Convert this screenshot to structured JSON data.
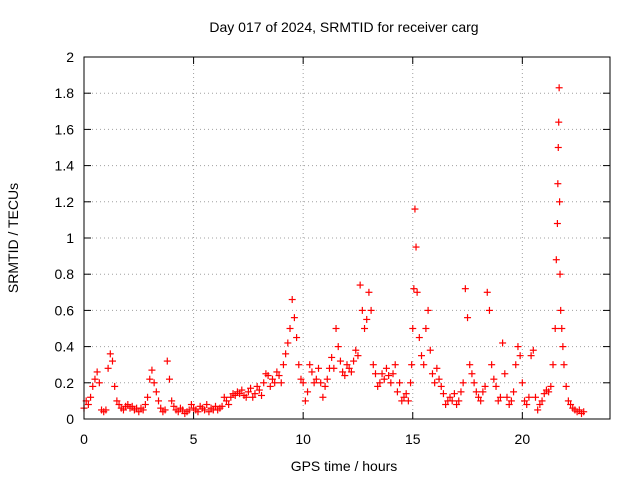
{
  "chart_data": {
    "type": "scatter",
    "title": "Day 017 of 2024, SRMTID for receiver carg",
    "xlabel": "GPS time / hours",
    "ylabel": "SRMTID / TECUs",
    "xlim": [
      0,
      24
    ],
    "ylim": [
      0,
      2
    ],
    "xticks": [
      0,
      5,
      10,
      15,
      20
    ],
    "yticks": [
      0,
      0.2,
      0.4,
      0.6,
      0.8,
      1,
      1.2,
      1.4,
      1.6,
      1.8,
      2
    ],
    "xtick_labels": [
      "0",
      "5",
      "10",
      "15",
      "20"
    ],
    "ytick_labels": [
      "0",
      "0.2",
      "0.4",
      "0.6",
      "0.8",
      "1",
      "1.2",
      "1.4",
      "1.6",
      "1.8",
      "2"
    ],
    "grid": true,
    "marker": "+",
    "color": "#ff0000",
    "series": [
      {
        "name": "SRMTID",
        "x": [
          0.0,
          0.1,
          0.2,
          0.3,
          0.4,
          0.5,
          0.6,
          0.7,
          0.8,
          0.9,
          1.0,
          1.1,
          1.2,
          1.3,
          1.4,
          1.5,
          1.6,
          1.7,
          1.8,
          1.9,
          2.0,
          2.1,
          2.2,
          2.3,
          2.4,
          2.5,
          2.6,
          2.7,
          2.8,
          2.9,
          3.0,
          3.1,
          3.2,
          3.3,
          3.4,
          3.5,
          3.6,
          3.7,
          3.8,
          3.9,
          4.0,
          4.1,
          4.2,
          4.3,
          4.4,
          4.5,
          4.6,
          4.7,
          4.8,
          4.9,
          5.0,
          5.1,
          5.2,
          5.3,
          5.4,
          5.5,
          5.6,
          5.7,
          5.8,
          5.9,
          6.0,
          6.1,
          6.2,
          6.3,
          6.4,
          6.5,
          6.6,
          6.7,
          6.8,
          6.9,
          7.0,
          7.1,
          7.2,
          7.3,
          7.4,
          7.5,
          7.6,
          7.7,
          7.8,
          7.9,
          8.0,
          8.1,
          8.2,
          8.3,
          8.4,
          8.5,
          8.6,
          8.7,
          8.8,
          8.9,
          9.0,
          9.1,
          9.2,
          9.3,
          9.4,
          9.5,
          9.6,
          9.7,
          9.8,
          9.9,
          10.0,
          10.1,
          10.2,
          10.3,
          10.4,
          10.5,
          10.6,
          10.7,
          10.8,
          10.9,
          11.0,
          11.1,
          11.2,
          11.3,
          11.4,
          11.5,
          11.6,
          11.7,
          11.8,
          11.9,
          12.0,
          12.1,
          12.2,
          12.3,
          12.4,
          12.5,
          12.6,
          12.7,
          12.8,
          12.9,
          13.0,
          13.1,
          13.2,
          13.3,
          13.4,
          13.5,
          13.6,
          13.7,
          13.8,
          13.9,
          14.0,
          14.1,
          14.2,
          14.3,
          14.4,
          14.5,
          14.6,
          14.7,
          14.8,
          14.9,
          14.95,
          15.0,
          15.05,
          15.1,
          15.15,
          15.2,
          15.3,
          15.4,
          15.5,
          15.6,
          15.7,
          15.8,
          15.9,
          16.0,
          16.1,
          16.2,
          16.3,
          16.4,
          16.5,
          16.6,
          16.7,
          16.8,
          16.9,
          17.0,
          17.1,
          17.2,
          17.3,
          17.4,
          17.5,
          17.6,
          17.7,
          17.8,
          17.9,
          18.0,
          18.1,
          18.2,
          18.3,
          18.4,
          18.5,
          18.6,
          18.7,
          18.8,
          18.9,
          19.0,
          19.1,
          19.2,
          19.3,
          19.4,
          19.5,
          19.6,
          19.7,
          19.8,
          19.9,
          20.0,
          20.1,
          20.2,
          20.3,
          20.4,
          20.5,
          20.6,
          20.7,
          20.8,
          20.9,
          21.0,
          21.1,
          21.2,
          21.3,
          21.4,
          21.5,
          21.55,
          21.6,
          21.62,
          21.64,
          21.66,
          21.68,
          21.7,
          21.72,
          21.75,
          21.8,
          21.85,
          21.9,
          22.0,
          22.1,
          22.2,
          22.3,
          22.4,
          22.5,
          22.6,
          22.7,
          22.8
        ],
        "y": [
          0.06,
          0.1,
          0.08,
          0.12,
          0.18,
          0.22,
          0.26,
          0.2,
          0.05,
          0.04,
          0.05,
          0.28,
          0.36,
          0.32,
          0.18,
          0.1,
          0.08,
          0.06,
          0.05,
          0.07,
          0.08,
          0.06,
          0.07,
          0.05,
          0.06,
          0.04,
          0.06,
          0.05,
          0.08,
          0.12,
          0.22,
          0.27,
          0.2,
          0.15,
          0.1,
          0.06,
          0.04,
          0.05,
          0.32,
          0.22,
          0.1,
          0.07,
          0.05,
          0.04,
          0.06,
          0.05,
          0.03,
          0.04,
          0.05,
          0.08,
          0.06,
          0.05,
          0.04,
          0.07,
          0.06,
          0.05,
          0.08,
          0.04,
          0.06,
          0.05,
          0.07,
          0.05,
          0.06,
          0.07,
          0.12,
          0.1,
          0.08,
          0.12,
          0.14,
          0.13,
          0.15,
          0.14,
          0.16,
          0.13,
          0.12,
          0.15,
          0.17,
          0.12,
          0.14,
          0.18,
          0.16,
          0.13,
          0.2,
          0.25,
          0.24,
          0.18,
          0.22,
          0.2,
          0.26,
          0.24,
          0.2,
          0.3,
          0.36,
          0.42,
          0.5,
          0.66,
          0.56,
          0.45,
          0.3,
          0.22,
          0.2,
          0.1,
          0.15,
          0.3,
          0.26,
          0.2,
          0.22,
          0.28,
          0.2,
          0.12,
          0.18,
          0.22,
          0.28,
          0.34,
          0.28,
          0.5,
          0.4,
          0.32,
          0.26,
          0.24,
          0.3,
          0.28,
          0.26,
          0.32,
          0.38,
          0.35,
          0.74,
          0.6,
          0.5,
          0.55,
          0.7,
          0.6,
          0.3,
          0.25,
          0.18,
          0.2,
          0.25,
          0.22,
          0.28,
          0.24,
          0.2,
          0.25,
          0.3,
          0.15,
          0.2,
          0.1,
          0.12,
          0.14,
          0.1,
          0.2,
          0.3,
          0.5,
          0.72,
          1.16,
          0.95,
          0.7,
          0.45,
          0.35,
          0.3,
          0.5,
          0.6,
          0.38,
          0.25,
          0.2,
          0.28,
          0.22,
          0.18,
          0.14,
          0.08,
          0.1,
          0.12,
          0.1,
          0.14,
          0.08,
          0.1,
          0.15,
          0.2,
          0.72,
          0.56,
          0.3,
          0.25,
          0.2,
          0.15,
          0.12,
          0.1,
          0.15,
          0.18,
          0.7,
          0.6,
          0.3,
          0.22,
          0.18,
          0.1,
          0.12,
          0.42,
          0.25,
          0.12,
          0.08,
          0.1,
          0.15,
          0.3,
          0.4,
          0.35,
          0.2,
          0.1,
          0.08,
          0.12,
          0.35,
          0.38,
          0.12,
          0.05,
          0.08,
          0.1,
          0.14,
          0.16,
          0.15,
          0.18,
          0.3,
          0.5,
          0.88,
          1.08,
          1.3,
          1.5,
          1.64,
          1.83,
          1.2,
          0.8,
          0.6,
          0.5,
          0.4,
          0.3,
          0.18,
          0.1,
          0.08,
          0.06,
          0.05,
          0.04,
          0.05,
          0.03,
          0.04
        ]
      }
    ]
  }
}
